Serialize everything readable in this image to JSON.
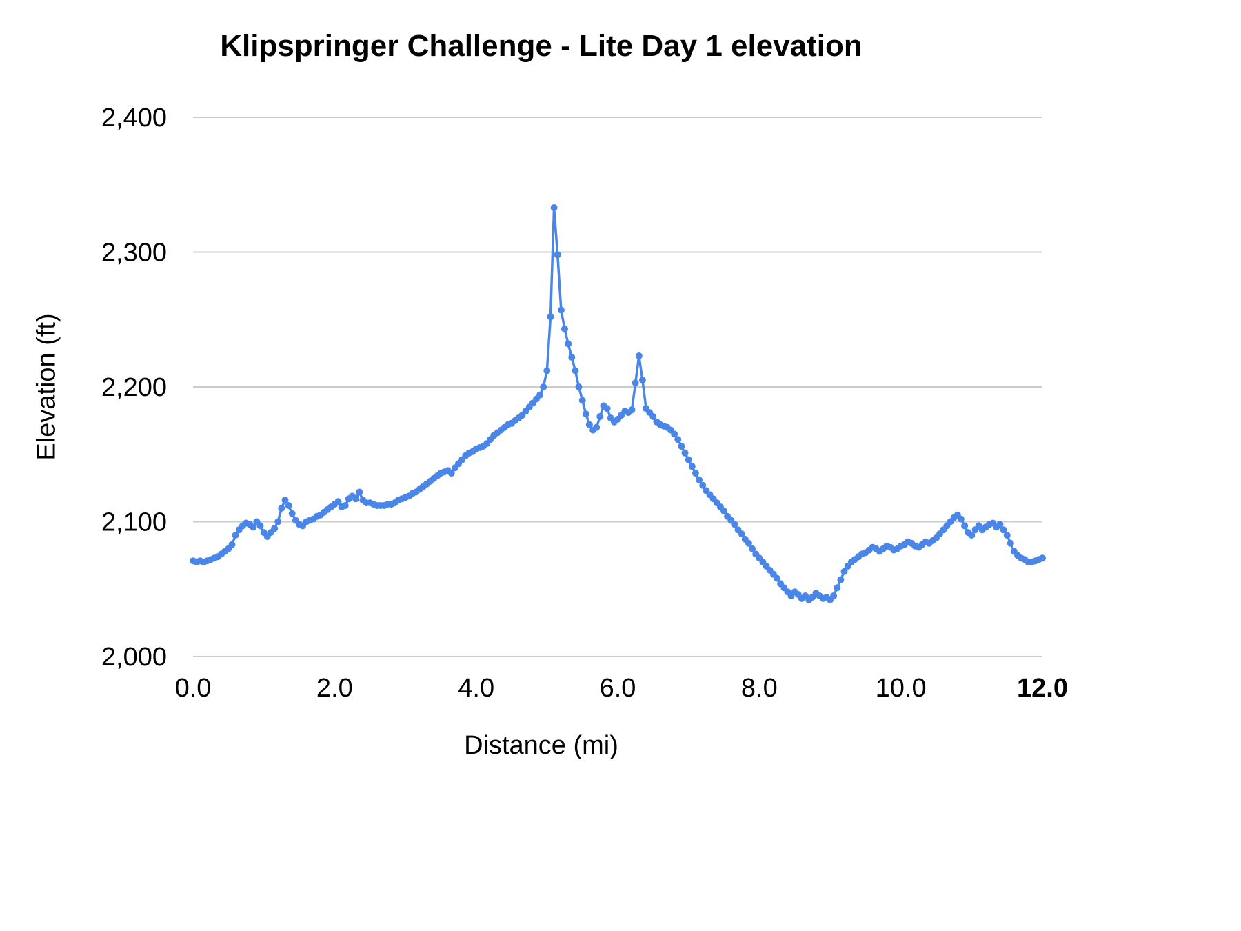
{
  "chart": {
    "title": "Klipspringer Challenge - Lite Day 1 elevation",
    "xlabel": "Distance (mi)",
    "ylabel": "Elevation (ft)"
  },
  "chart_data": {
    "type": "line",
    "title": "Klipspringer Challenge - Lite Day 1 elevation",
    "xlabel": "Distance (mi)",
    "ylabel": "Elevation (ft)",
    "xlim": [
      0,
      12
    ],
    "ylim": [
      2000,
      2400
    ],
    "grid": "horizontal",
    "legend": "none",
    "marker": "circle",
    "colors": {
      "line": "#4a86e8",
      "grid": "#cccccc",
      "text": "#000000"
    },
    "x_ticks": [
      {
        "v": 0,
        "label": "0.0",
        "bold": false
      },
      {
        "v": 2,
        "label": "2.0",
        "bold": false
      },
      {
        "v": 4,
        "label": "4.0",
        "bold": false
      },
      {
        "v": 6,
        "label": "6.0",
        "bold": false
      },
      {
        "v": 8,
        "label": "8.0",
        "bold": false
      },
      {
        "v": 10,
        "label": "10.0",
        "bold": false
      },
      {
        "v": 12,
        "label": "12.0",
        "bold": true
      }
    ],
    "y_ticks": [
      {
        "v": 2000,
        "label": "2,000"
      },
      {
        "v": 2100,
        "label": "2,100"
      },
      {
        "v": 2200,
        "label": "2,200"
      },
      {
        "v": 2300,
        "label": "2,300"
      },
      {
        "v": 2400,
        "label": "2,400"
      }
    ],
    "x_start": 0,
    "x_step": 0.05,
    "series": [
      {
        "name": "Elevation",
        "y": [
          2071,
          2070,
          2071,
          2070,
          2071,
          2072,
          2073,
          2074,
          2076,
          2078,
          2080,
          2083,
          2090,
          2094,
          2097,
          2099,
          2098,
          2096,
          2100,
          2097,
          2092,
          2089,
          2092,
          2095,
          2100,
          2110,
          2116,
          2112,
          2106,
          2101,
          2098,
          2097,
          2100,
          2101,
          2102,
          2104,
          2105,
          2107,
          2109,
          2111,
          2113,
          2115,
          2111,
          2112,
          2117,
          2119,
          2117,
          2122,
          2116,
          2114,
          2114,
          2113,
          2112,
          2112,
          2112,
          2113,
          2113,
          2114,
          2116,
          2117,
          2118,
          2119,
          2121,
          2122,
          2124,
          2126,
          2128,
          2130,
          2132,
          2134,
          2136,
          2137,
          2138,
          2136,
          2140,
          2143,
          2146,
          2149,
          2151,
          2152,
          2154,
          2155,
          2156,
          2158,
          2161,
          2164,
          2166,
          2168,
          2170,
          2172,
          2173,
          2175,
          2177,
          2179,
          2182,
          2185,
          2188,
          2191,
          2194,
          2200,
          2212,
          2252,
          2333,
          2298,
          2257,
          2243,
          2232,
          2222,
          2212,
          2200,
          2190,
          2180,
          2172,
          2168,
          2170,
          2178,
          2186,
          2184,
          2177,
          2174,
          2176,
          2179,
          2182,
          2181,
          2183,
          2203,
          2223,
          2205,
          2184,
          2181,
          2178,
          2174,
          2172,
          2171,
          2170,
          2168,
          2165,
          2161,
          2156,
          2151,
          2146,
          2141,
          2136,
          2131,
          2127,
          2123,
          2120,
          2117,
          2114,
          2111,
          2108,
          2104,
          2101,
          2098,
          2094,
          2091,
          2087,
          2084,
          2080,
          2076,
          2073,
          2070,
          2067,
          2064,
          2061,
          2058,
          2054,
          2051,
          2048,
          2045,
          2048,
          2046,
          2043,
          2045,
          2042,
          2044,
          2047,
          2045,
          2043,
          2044,
          2042,
          2045,
          2051,
          2057,
          2063,
          2067,
          2070,
          2072,
          2074,
          2076,
          2077,
          2079,
          2081,
          2080,
          2078,
          2080,
          2082,
          2081,
          2079,
          2080,
          2082,
          2083,
          2085,
          2084,
          2082,
          2081,
          2083,
          2085,
          2084,
          2086,
          2088,
          2091,
          2094,
          2097,
          2100,
          2103,
          2105,
          2102,
          2097,
          2092,
          2090,
          2094,
          2097,
          2094,
          2096,
          2098,
          2099,
          2096,
          2098,
          2094,
          2090,
          2084,
          2078,
          2075,
          2073,
          2072,
          2070,
          2070,
          2071,
          2072,
          2073
        ]
      }
    ]
  }
}
